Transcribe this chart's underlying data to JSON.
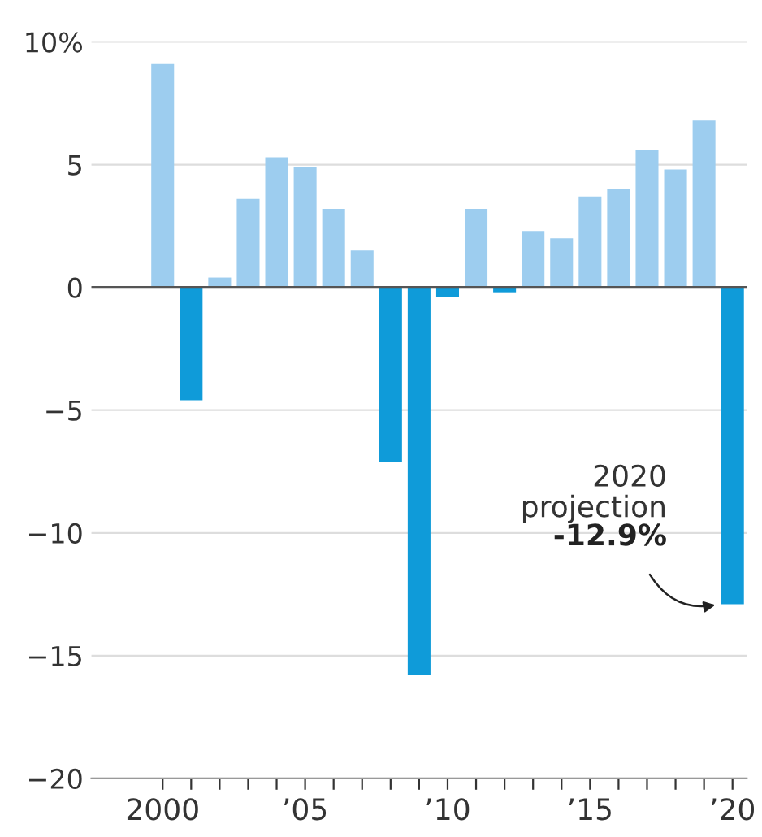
{
  "chart_data": {
    "type": "bar",
    "x": [
      2000,
      2001,
      2002,
      2003,
      2004,
      2005,
      2006,
      2007,
      2008,
      2009,
      2010,
      2011,
      2012,
      2013,
      2014,
      2015,
      2016,
      2017,
      2018,
      2019,
      2020
    ],
    "values": [
      9.1,
      -4.6,
      0.4,
      3.6,
      5.3,
      4.9,
      3.2,
      1.5,
      -7.1,
      -15.8,
      -0.4,
      3.2,
      -0.2,
      2.3,
      2.0,
      3.7,
      4.0,
      5.6,
      4.8,
      6.8,
      -12.9
    ],
    "colors": [
      "#9dcdef",
      "#0f9bd9",
      "#9dcdef",
      "#9dcdef",
      "#9dcdef",
      "#9dcdef",
      "#9dcdef",
      "#9dcdef",
      "#0f9bd9",
      "#0f9bd9",
      "#0f9bd9",
      "#9dcdef",
      "#0f9bd9",
      "#9dcdef",
      "#9dcdef",
      "#9dcdef",
      "#9dcdef",
      "#9dcdef",
      "#9dcdef",
      "#9dcdef",
      "#0f9bd9"
    ],
    "xlim": [
      1997.5,
      2020.5
    ],
    "xticks": [
      {
        "value": 2000,
        "label": "2000"
      },
      {
        "value": 2001,
        "label": null
      },
      {
        "value": 2002,
        "label": null
      },
      {
        "value": 2003,
        "label": null
      },
      {
        "value": 2004,
        "label": null
      },
      {
        "value": 2005,
        "label": "’05"
      },
      {
        "value": 2006,
        "label": null
      },
      {
        "value": 2007,
        "label": null
      },
      {
        "value": 2008,
        "label": null
      },
      {
        "value": 2009,
        "label": null
      },
      {
        "value": 2010,
        "label": "’10"
      },
      {
        "value": 2011,
        "label": null
      },
      {
        "value": 2012,
        "label": null
      },
      {
        "value": 2013,
        "label": null
      },
      {
        "value": 2014,
        "label": null
      },
      {
        "value": 2015,
        "label": "’15"
      },
      {
        "value": 2016,
        "label": null
      },
      {
        "value": 2017,
        "label": null
      },
      {
        "value": 2018,
        "label": null
      },
      {
        "value": 2019,
        "label": null
      },
      {
        "value": 2020,
        "label": "’20"
      }
    ],
    "ylim": [
      -20,
      10
    ],
    "yticks": [
      {
        "value": 10,
        "label": "10%"
      },
      5,
      0,
      {
        "value": -5,
        "label": "−5"
      },
      {
        "value": -10,
        "label": "−10"
      },
      {
        "value": -15,
        "label": "−15"
      },
      {
        "value": -20,
        "label": "−20"
      }
    ],
    "grid": "y",
    "ref_lines": [
      {
        "axis": "y",
        "value": 0,
        "color": "#555555"
      }
    ],
    "annotations": [
      "2020\nprojection",
      "-12.9%"
    ]
  }
}
